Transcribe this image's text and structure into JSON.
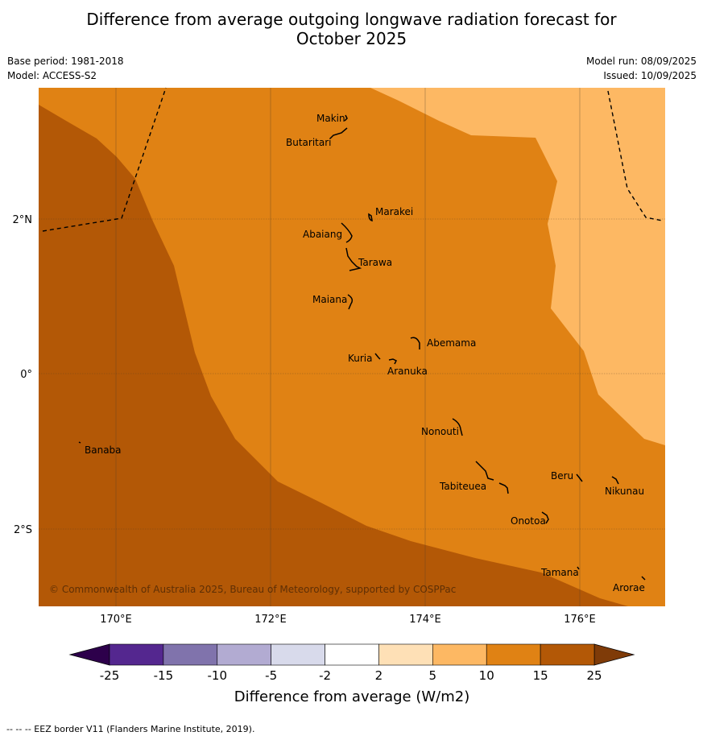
{
  "title_line1": "Difference from average outgoing longwave radiation forecast for",
  "title_line2": "October 2025",
  "meta_left": {
    "base_period": "Base period: 1981-2018",
    "model": "Model: ACCESS-S2"
  },
  "meta_right": {
    "model_run": "Model run: 08/09/2025",
    "issued": "Issued: 10/09/2025"
  },
  "map": {
    "lon_range": [
      169.0,
      177.1
    ],
    "lat_range": [
      -3.0,
      3.7
    ],
    "lon_ticks": [
      {
        "value": 170,
        "label": "170°E"
      },
      {
        "value": 172,
        "label": "172°E"
      },
      {
        "value": 174,
        "label": "174°E"
      },
      {
        "value": 176,
        "label": "176°E"
      }
    ],
    "lat_ticks": [
      {
        "value": 2,
        "label": "2°N"
      },
      {
        "value": 0,
        "label": "0°"
      },
      {
        "value": -2,
        "label": "2°S"
      }
    ],
    "places": [
      {
        "name": "Makin"
      },
      {
        "name": "Butaritari"
      },
      {
        "name": "Marakei"
      },
      {
        "name": "Abaiang"
      },
      {
        "name": "Tarawa"
      },
      {
        "name": "Maiana"
      },
      {
        "name": "Abemama"
      },
      {
        "name": "Kuria"
      },
      {
        "name": "Aranuka"
      },
      {
        "name": "Nonouti"
      },
      {
        "name": "Banaba"
      },
      {
        "name": "Beru"
      },
      {
        "name": "Nikunau"
      },
      {
        "name": "Tabiteuea"
      },
      {
        "name": "Onotoa"
      },
      {
        "name": "Tamana"
      },
      {
        "name": "Arorae"
      }
    ],
    "copyright": "© Commonwealth of Australia 2025, Bureau of Meteorology, supported by COSPPac"
  },
  "colorbar": {
    "ticks": [
      "-25",
      "-15",
      "-10",
      "-5",
      "-2",
      "2",
      "5",
      "10",
      "15",
      "25"
    ],
    "colors": [
      "#54278f",
      "#8073ac",
      "#b2abd2",
      "#d8daeb",
      "#ffffff",
      "#fee0b6",
      "#fdb863",
      "#e08214",
      "#b35806"
    ],
    "under_color": "#2d004b",
    "over_color": "#7f3b08",
    "label": "Difference from average (W/m2)"
  },
  "footnote": "--  --  -- EEZ border V11 (Flanders Marine Institute, 2019)."
}
